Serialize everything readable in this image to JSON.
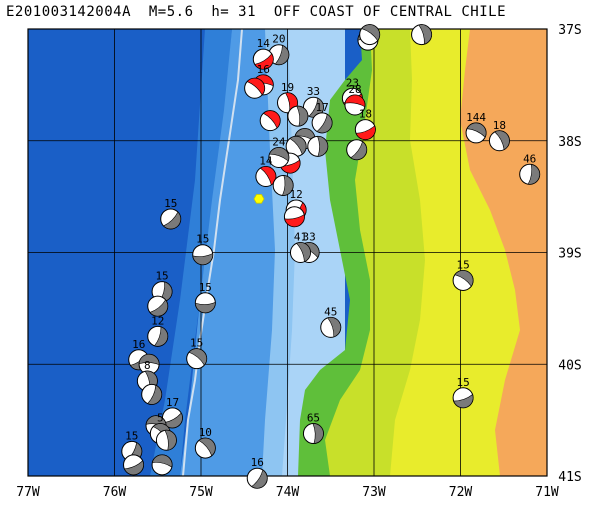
{
  "title": "E201003142004A  M=5.6  h= 31  OFF COAST OF CENTRAL CHILE",
  "map": {
    "lon_min": -77,
    "lon_max": -71,
    "lat_min": -41,
    "lat_max": -37,
    "lon_ticks": [
      {
        "value": -77,
        "label": "77W"
      },
      {
        "value": -76,
        "label": "76W"
      },
      {
        "value": -75,
        "label": "75W"
      },
      {
        "value": -74,
        "label": "74W"
      },
      {
        "value": -73,
        "label": "73W"
      },
      {
        "value": -72,
        "label": "72W"
      },
      {
        "value": -71,
        "label": "71W"
      }
    ],
    "lat_ticks": [
      {
        "value": -37,
        "label": "37S"
      },
      {
        "value": -38,
        "label": "38S"
      },
      {
        "value": -39,
        "label": "39S"
      },
      {
        "value": -40,
        "label": "40S"
      },
      {
        "value": -41,
        "label": "41S"
      }
    ],
    "colors": {
      "deep_ocean": "#1a5fc7",
      "ocean_mid": "#2f7fd8",
      "ocean_shelf": "#4f9be6",
      "shelf_light": "#8ec5f2",
      "coastal_shelf": "#aad4f7",
      "lowland": "#5fbf3a",
      "lowland_yellow": "#c8e02a",
      "hills_yellow": "#e8ec2c",
      "highland": "#f5a85a",
      "trench_line": "#d0e0f0",
      "grid": "#000000",
      "epicenter": "#ffff00",
      "focal_red": "#ff1a1a",
      "focal_gray": "#7a7a7a"
    }
  },
  "epicenter": {
    "lon": -74.33,
    "lat": -38.52
  },
  "events": [
    {
      "lon": -73.07,
      "lat": -37.1,
      "label": "",
      "color": "gray"
    },
    {
      "lon": -73.05,
      "lat": -37.05,
      "label": "",
      "color": "gray"
    },
    {
      "lon": -72.45,
      "lat": -37.05,
      "label": "",
      "color": "gray"
    },
    {
      "lon": -74.1,
      "lat": -37.23,
      "label": "20",
      "color": "gray"
    },
    {
      "lon": -74.28,
      "lat": -37.27,
      "label": "14",
      "color": "red"
    },
    {
      "lon": -74.28,
      "lat": -37.5,
      "label": "16",
      "color": "red"
    },
    {
      "lon": -74.38,
      "lat": -37.53,
      "label": "",
      "color": "red"
    },
    {
      "lon": -74.0,
      "lat": -37.66,
      "label": "19",
      "color": "red"
    },
    {
      "lon": -73.7,
      "lat": -37.7,
      "label": "33",
      "color": "gray"
    },
    {
      "lon": -73.25,
      "lat": -37.62,
      "label": "23",
      "color": "red"
    },
    {
      "lon": -73.22,
      "lat": -37.68,
      "label": "28",
      "color": "red"
    },
    {
      "lon": -74.2,
      "lat": -37.82,
      "label": "",
      "color": "red"
    },
    {
      "lon": -73.88,
      "lat": -37.78,
      "label": "",
      "color": "gray"
    },
    {
      "lon": -73.6,
      "lat": -37.84,
      "label": "17",
      "color": "gray"
    },
    {
      "lon": -73.1,
      "lat": -37.9,
      "label": "18",
      "color": "red"
    },
    {
      "lon": -73.8,
      "lat": -37.98,
      "label": "",
      "color": "gray"
    },
    {
      "lon": -73.9,
      "lat": -38.05,
      "label": "",
      "color": "gray"
    },
    {
      "lon": -73.65,
      "lat": -38.05,
      "label": "",
      "color": "gray"
    },
    {
      "lon": -73.2,
      "lat": -38.08,
      "label": "",
      "color": "gray"
    },
    {
      "lon": -73.97,
      "lat": -38.2,
      "label": "",
      "color": "red"
    },
    {
      "lon": -74.1,
      "lat": -38.15,
      "label": "24",
      "color": "gray"
    },
    {
      "lon": -74.25,
      "lat": -38.32,
      "label": "14",
      "color": "red"
    },
    {
      "lon": -74.05,
      "lat": -38.4,
      "label": "",
      "color": "gray"
    },
    {
      "lon": -73.9,
      "lat": -38.62,
      "label": "12",
      "color": "red"
    },
    {
      "lon": -73.92,
      "lat": -38.68,
      "label": "",
      "color": "red"
    },
    {
      "lon": -71.82,
      "lat": -37.93,
      "label": "144",
      "color": "gray"
    },
    {
      "lon": -71.55,
      "lat": -38.0,
      "label": "18",
      "color": "gray"
    },
    {
      "lon": -71.2,
      "lat": -38.3,
      "label": "46",
      "color": "gray"
    },
    {
      "lon": -75.35,
      "lat": -38.7,
      "label": "15",
      "color": "gray"
    },
    {
      "lon": -74.98,
      "lat": -39.02,
      "label": "15",
      "color": "gray"
    },
    {
      "lon": -73.75,
      "lat": -39.0,
      "label": "33",
      "color": "gray"
    },
    {
      "lon": -73.85,
      "lat": -39.0,
      "label": "41",
      "color": "gray"
    },
    {
      "lon": -75.45,
      "lat": -39.35,
      "label": "15",
      "color": "gray"
    },
    {
      "lon": -75.5,
      "lat": -39.48,
      "label": "",
      "color": "gray"
    },
    {
      "lon": -74.95,
      "lat": -39.45,
      "label": "15",
      "color": "gray"
    },
    {
      "lon": -71.97,
      "lat": -39.25,
      "label": "15",
      "color": "gray"
    },
    {
      "lon": -73.5,
      "lat": -39.67,
      "label": "45",
      "color": "gray"
    },
    {
      "lon": -75.5,
      "lat": -39.75,
      "label": "12",
      "color": "gray"
    },
    {
      "lon": -75.72,
      "lat": -39.96,
      "label": "16",
      "color": "gray"
    },
    {
      "lon": -75.6,
      "lat": -40.0,
      "label": "",
      "color": "gray"
    },
    {
      "lon": -75.05,
      "lat": -39.95,
      "label": "15",
      "color": "gray"
    },
    {
      "lon": -75.62,
      "lat": -40.15,
      "label": "8",
      "color": "gray"
    },
    {
      "lon": -75.57,
      "lat": -40.27,
      "label": "",
      "color": "gray"
    },
    {
      "lon": -75.33,
      "lat": -40.48,
      "label": "17",
      "color": "gray"
    },
    {
      "lon": -75.52,
      "lat": -40.55,
      "label": "",
      "color": "gray"
    },
    {
      "lon": -75.47,
      "lat": -40.62,
      "label": "5",
      "color": "gray"
    },
    {
      "lon": -75.4,
      "lat": -40.68,
      "label": "",
      "color": "gray"
    },
    {
      "lon": -75.8,
      "lat": -40.78,
      "label": "15",
      "color": "gray"
    },
    {
      "lon": -75.78,
      "lat": -40.9,
      "label": "",
      "color": "gray"
    },
    {
      "lon": -75.45,
      "lat": -40.9,
      "label": "",
      "color": "gray"
    },
    {
      "lon": -74.95,
      "lat": -40.75,
      "label": "10",
      "color": "gray"
    },
    {
      "lon": -73.7,
      "lat": -40.62,
      "label": "65",
      "color": "gray"
    },
    {
      "lon": -74.35,
      "lat": -41.02,
      "label": "16",
      "color": "gray"
    },
    {
      "lon": -71.97,
      "lat": -40.3,
      "label": "15",
      "color": "gray"
    }
  ]
}
